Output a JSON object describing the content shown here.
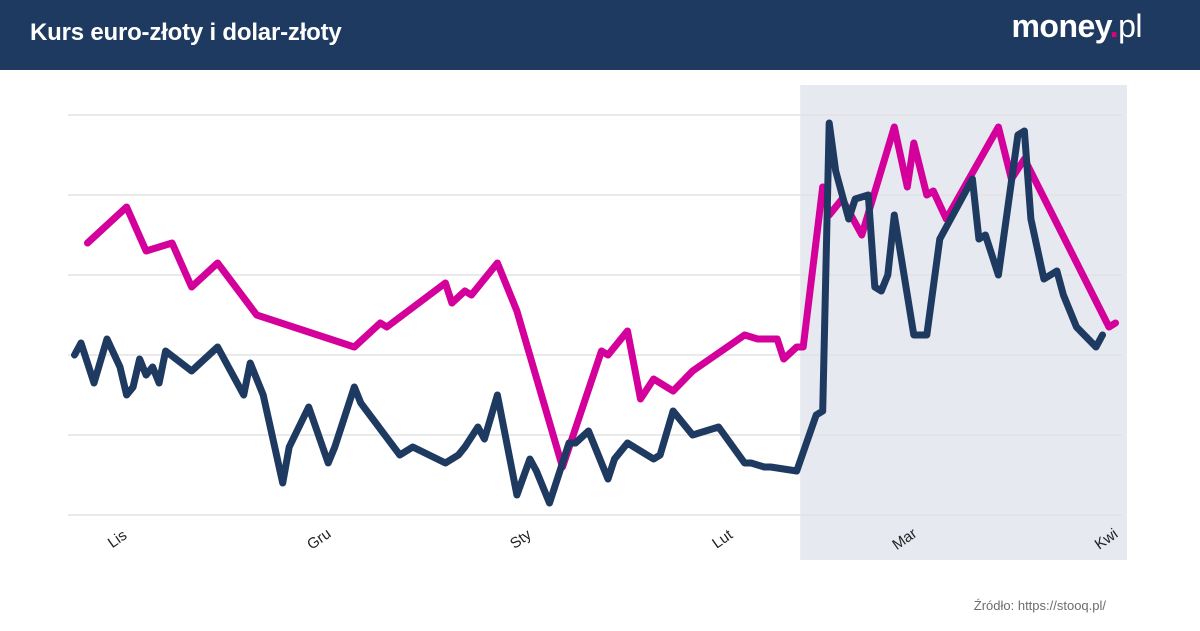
{
  "header": {
    "title": "Kurs euro-złoty i dolar-złoty",
    "logo_main": "money",
    "logo_dot": ".",
    "logo_tld": "pl"
  },
  "source": "Źródło: https://stooq.pl/",
  "colors": {
    "header_bg": "#1f3a60",
    "eur_line": "#d3009b",
    "usd_line": "#1f3a60",
    "highlight_band": "#e6e9ef",
    "grid": "#e3e3e3"
  },
  "chart_data": {
    "type": "line",
    "title": "Kurs euro-złoty i dolar-złoty",
    "xlabel": "",
    "ylabel": "",
    "x_range": [
      0,
      162
    ],
    "y_range": [
      0,
      100
    ],
    "y_gridlines": [
      0,
      20,
      40,
      60,
      80,
      100
    ],
    "y_tick_labels_shown": false,
    "x_ticks": [
      {
        "label": "Lis",
        "x": 8
      },
      {
        "label": "Gru",
        "x": 39
      },
      {
        "label": "Sty",
        "x": 70
      },
      {
        "label": "Lut",
        "x": 101
      },
      {
        "label": "Mar",
        "x": 129
      },
      {
        "label": "Kwi",
        "x": 160
      }
    ],
    "highlight_range": [
      113,
      162
    ],
    "series": [
      {
        "name": "Kurs euro-złoty",
        "color": "#d3009b",
        "x": [
          3,
          9,
          12,
          16,
          19,
          23,
          29,
          44,
          48,
          49,
          58,
          59,
          61,
          62,
          66,
          69,
          76,
          82,
          83,
          86,
          88,
          90,
          93,
          96,
          104,
          106,
          109,
          110,
          112,
          113,
          116,
          117,
          119,
          120,
          122,
          127,
          129,
          130,
          132,
          133,
          135,
          143,
          145,
          147,
          160,
          161
        ],
        "y": [
          68,
          77,
          66,
          68,
          57,
          63,
          50,
          42,
          48,
          47,
          58,
          53,
          56,
          55,
          63,
          51,
          12,
          41,
          40,
          46,
          29,
          34,
          31,
          36,
          45,
          44,
          44,
          39,
          42,
          42,
          82,
          75,
          79,
          76,
          70,
          97,
          82,
          93,
          80,
          81,
          74,
          97,
          84,
          89,
          47,
          48
        ]
      },
      {
        "name": "Kurs dolar-złoty",
        "color": "#1f3a60",
        "x": [
          1,
          2,
          4,
          6,
          8,
          9,
          10,
          11,
          12,
          13,
          14,
          15,
          19,
          23,
          27,
          28,
          30,
          33,
          34,
          37,
          40,
          41,
          42,
          44,
          45,
          51,
          53,
          58,
          60,
          61,
          63,
          64,
          66,
          69,
          71,
          72,
          74,
          77,
          78,
          80,
          83,
          84,
          86,
          88,
          90,
          91,
          93,
          96,
          100,
          104,
          105,
          107,
          108,
          112,
          115,
          116,
          117,
          118,
          120,
          121,
          123,
          124,
          125,
          126,
          127,
          130,
          131,
          132,
          134,
          139,
          140,
          141,
          143,
          146,
          147,
          148,
          150,
          152,
          153,
          155,
          158,
          159
        ],
        "y": [
          40,
          43,
          33,
          44,
          37,
          30,
          32,
          39,
          35,
          37,
          33,
          41,
          36,
          42,
          30,
          38,
          30,
          8,
          17,
          27,
          13,
          17,
          22,
          32,
          28,
          15,
          17,
          13,
          15,
          17,
          22,
          19,
          30,
          5,
          14,
          11,
          3,
          18,
          18,
          21,
          9,
          14,
          18,
          16,
          14,
          15,
          26,
          20,
          22,
          13,
          13,
          12,
          12,
          11,
          25,
          26,
          98,
          86,
          74,
          79,
          80,
          57,
          56,
          60,
          75,
          45,
          45,
          45,
          69,
          84,
          69,
          70,
          60,
          95,
          96,
          74,
          59,
          61,
          55,
          47,
          42,
          45
        ]
      }
    ]
  }
}
